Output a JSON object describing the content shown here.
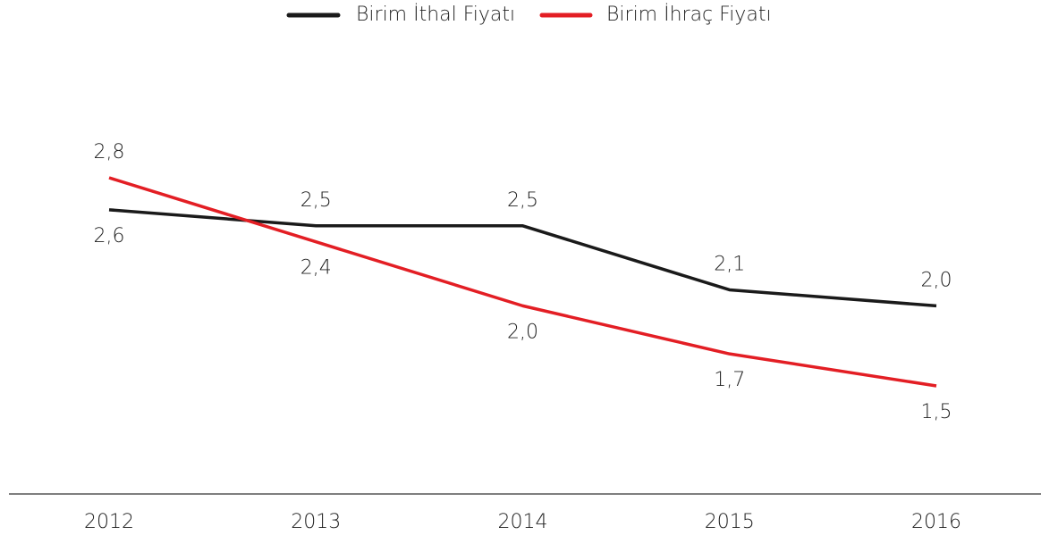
{
  "chart_data": {
    "type": "line",
    "categories": [
      "2012",
      "2013",
      "2014",
      "2015",
      "2016"
    ],
    "series": [
      {
        "name": "Birim İthal Fiyatı",
        "color": "#1a1a1a",
        "values": [
          2.6,
          2.5,
          2.5,
          2.1,
          2.0
        ],
        "value_labels": [
          "2,6",
          "2,5",
          "2,5",
          "2,1",
          "2,0"
        ]
      },
      {
        "name": "Birim İhraç Fiyatı",
        "color": "#e31e24",
        "values": [
          2.8,
          2.4,
          2.0,
          1.7,
          1.5
        ],
        "value_labels": [
          "2,8",
          "2,4",
          "2,0",
          "1,7",
          "1,5"
        ]
      }
    ],
    "legend": "top"
  }
}
